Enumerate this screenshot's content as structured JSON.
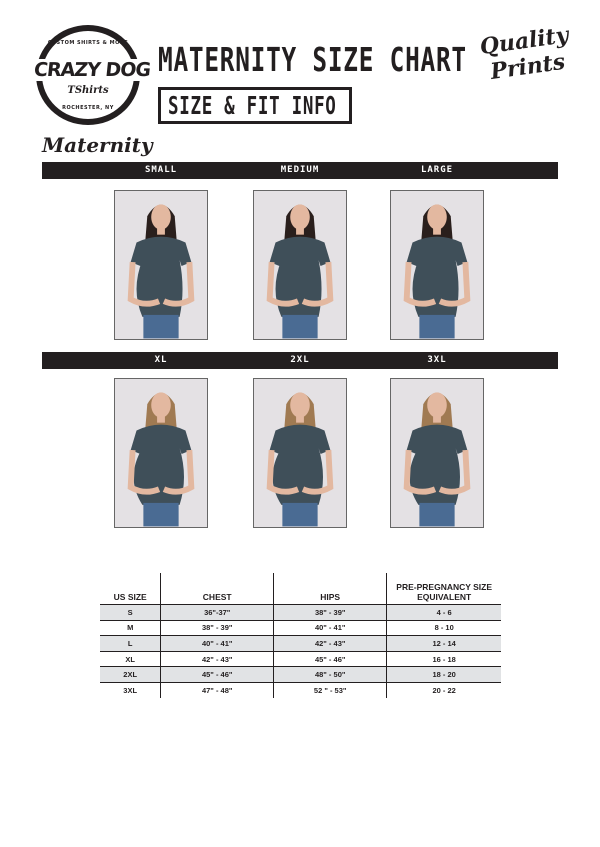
{
  "header": {
    "brand_logo": {
      "main": "CRAZY DOG",
      "sub": "TShirts",
      "top_arc": "CUSTOM SHIRTS & MORE",
      "bottom_arc": "ROCHESTER, NY"
    },
    "title": "MATERNITY SIZE CHART",
    "subtitle": "SIZE & FIT INFO",
    "quality_logo": "Quality Prints"
  },
  "section_label": "Maternity",
  "size_rows": [
    {
      "labels": [
        "SMALL",
        "MEDIUM",
        "LARGE"
      ],
      "hair": [
        "#2a1f1c",
        "#2a1f1c",
        "#2a1f1c"
      ]
    },
    {
      "labels": [
        "XL",
        "2XL",
        "3XL"
      ],
      "hair": [
        "#a07a52",
        "#a07a52",
        "#a07a52"
      ]
    }
  ],
  "colors": {
    "bar": "#231f20",
    "shirt": "#3f4f59",
    "row_shade": "#e1e3e5"
  },
  "table": {
    "headers": [
      "US SIZE",
      "CHEST",
      "HIPS",
      "PRE-PREGNANCY SIZE EQUIVALENT"
    ],
    "rows": [
      [
        "S",
        "36\"-37\"",
        "38\" - 39\"",
        "4 - 6"
      ],
      [
        "M",
        "38\" - 39\"",
        "40\" - 41\"",
        "8 - 10"
      ],
      [
        "L",
        "40\" - 41\"",
        "42\" - 43\"",
        "12 - 14"
      ],
      [
        "XL",
        "42\" - 43\"",
        "45\" - 46\"",
        "16 - 18"
      ],
      [
        "2XL",
        "45\" - 46\"",
        "48\" - 50\"",
        "18 - 20"
      ],
      [
        "3XL",
        "47\" - 48\"",
        "52 \" - 53\"",
        "20 - 22"
      ]
    ]
  }
}
